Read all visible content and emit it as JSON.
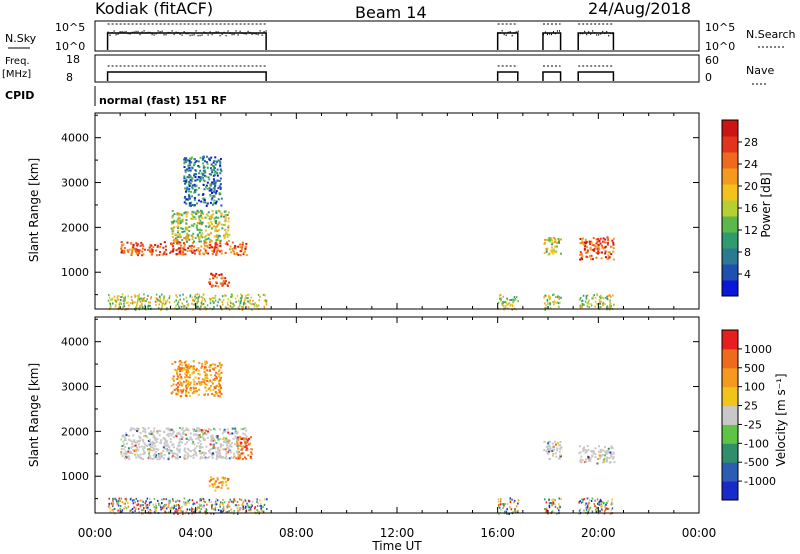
{
  "header": {
    "station": "Kodiak (fitACF)",
    "beam": "Beam 14",
    "date": "24/Aug/2018"
  },
  "left_labels": {
    "nsky": "N.Sky",
    "freq": "Freq.",
    "freq_unit": "[MHz]",
    "cpid": "CPID"
  },
  "right_labels": {
    "nsearch": "N.Search",
    "nave": "Nave"
  },
  "noise_axis": {
    "left_ticks": [
      "10^5",
      "10^0"
    ],
    "right_ticks": [
      "10^5",
      "10^0"
    ]
  },
  "freq_axis": {
    "left_ticks": [
      "18",
      "8"
    ],
    "right_ticks": [
      "60",
      "0"
    ]
  },
  "cpid_text": "normal (fast) 151 RF",
  "time_axis": {
    "label": "Time UT",
    "ticks": [
      "00:00",
      "04:00",
      "08:00",
      "12:00",
      "16:00",
      "20:00",
      "00:00"
    ]
  },
  "power_colorbar": {
    "label": "Power [dB]",
    "ticks": [
      "28",
      "24",
      "20",
      "16",
      "12",
      "8",
      "4"
    ],
    "colors": [
      "#0a17d8",
      "#1f4fb0",
      "#2c7a92",
      "#2f9b6e",
      "#5cb84b",
      "#b7cf33",
      "#f2c31a",
      "#f39a1f",
      "#ee6a1d",
      "#e2341c",
      "#cc1414"
    ]
  },
  "velocity_colorbar": {
    "label": "Velocity [m s⁻¹]",
    "ticks": [
      "1000",
      "500",
      "100",
      "25",
      "-25",
      "-100",
      "-500",
      "-1000"
    ],
    "colors": [
      "#1a2ac8",
      "#2d5cb4",
      "#2f8f6a",
      "#5ec447",
      "#c8c8c8",
      "#f2c31a",
      "#f39a1f",
      "#ee6a1d",
      "#e81e1e"
    ]
  },
  "chart_data": [
    {
      "type": "heatmap",
      "name": "power",
      "ylabel": "Slant Range [km]",
      "xlabel": "Time UT",
      "xlim_hours": [
        0,
        24
      ],
      "ylim_km": [
        180,
        4550
      ],
      "yticks": [
        1000,
        2000,
        3000,
        4000
      ],
      "colorbar": "Power [dB]",
      "operating_intervals_hours": [
        [
          0.5,
          6.8
        ],
        [
          16.0,
          16.8
        ],
        [
          17.8,
          18.5
        ],
        [
          19.2,
          20.6
        ]
      ],
      "regions": [
        {
          "t": [
            1.0,
            6.0
          ],
          "range_km": [
            1400,
            1700
          ],
          "level": "high"
        },
        {
          "t": [
            3.0,
            5.3
          ],
          "range_km": [
            1700,
            2400
          ],
          "level": "mid"
        },
        {
          "t": [
            4.5,
            5.3
          ],
          "range_km": [
            700,
            1000
          ],
          "level": "high"
        },
        {
          "t": [
            3.5,
            5.0
          ],
          "range_km": [
            2500,
            3600
          ],
          "level": "low"
        },
        {
          "t": [
            17.8,
            18.5
          ],
          "range_km": [
            1400,
            1800
          ],
          "level": "mid"
        },
        {
          "t": [
            19.2,
            20.6
          ],
          "range_km": [
            1300,
            1800
          ],
          "level": "high"
        }
      ]
    },
    {
      "type": "heatmap",
      "name": "velocity",
      "ylabel": "Slant Range [km]",
      "xlabel": "Time UT",
      "xlim_hours": [
        0,
        24
      ],
      "ylim_km": [
        180,
        4550
      ],
      "yticks": [
        1000,
        2000,
        3000,
        4000
      ],
      "colorbar": "Velocity [m s⁻¹]",
      "regions": [
        {
          "t": [
            1.0,
            6.0
          ],
          "range_km": [
            1400,
            2100
          ],
          "level": "near-zero"
        },
        {
          "t": [
            4.5,
            5.3
          ],
          "range_km": [
            700,
            1000
          ],
          "level": "negative"
        },
        {
          "t": [
            5.6,
            6.2
          ],
          "range_km": [
            1400,
            1900
          ],
          "level": "strong-negative"
        },
        {
          "t": [
            3.0,
            5.0
          ],
          "range_km": [
            2800,
            3600
          ],
          "level": "negative"
        },
        {
          "t": [
            17.8,
            18.5
          ],
          "range_km": [
            1400,
            1800
          ],
          "level": "near-zero"
        },
        {
          "t": [
            19.2,
            20.6
          ],
          "range_km": [
            1300,
            1700
          ],
          "level": "near-zero"
        }
      ]
    }
  ]
}
